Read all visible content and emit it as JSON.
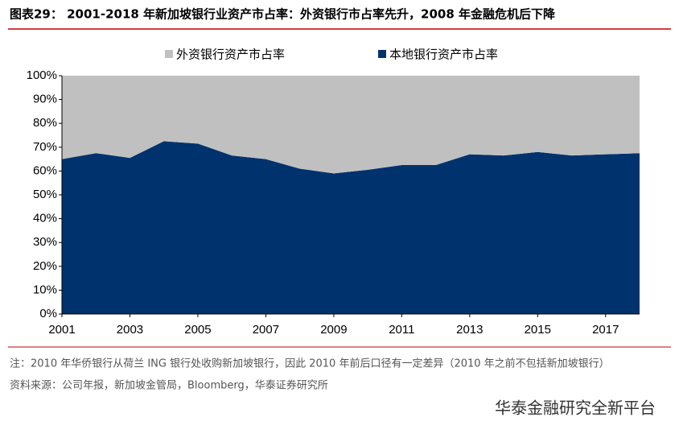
{
  "chart_data": {
    "type": "stacked-area",
    "title": "图表29： 2001-2018 年新加坡银行业资产市占率：外资银行市占率先升，2008 年金融危机后下降",
    "x": [
      2001,
      2002,
      2003,
      2004,
      2005,
      2006,
      2007,
      2008,
      2009,
      2010,
      2011,
      2012,
      2013,
      2014,
      2015,
      2016,
      2017,
      2018
    ],
    "series": [
      {
        "name": "外资银行资产市占率",
        "color": "#c0c0c0",
        "values": [
          35,
          32.5,
          34.5,
          27.5,
          28.5,
          33.5,
          35,
          39,
          41,
          39.5,
          37.5,
          37.5,
          33,
          33.5,
          32,
          33.5,
          33,
          32.5
        ]
      },
      {
        "name": "本地银行资产市占率",
        "color": "#00336e",
        "values": [
          65,
          67.5,
          65.5,
          72.5,
          71.5,
          66.5,
          65,
          61,
          59,
          60.5,
          62.5,
          62.5,
          67,
          66.5,
          68,
          66.5,
          67,
          67.5
        ]
      }
    ],
    "xlim": [
      2001,
      2018
    ],
    "xticks": [
      2001,
      2003,
      2005,
      2007,
      2009,
      2011,
      2013,
      2015,
      2017
    ],
    "ylim": [
      0,
      100
    ],
    "yticks": [
      {
        "value": 0,
        "label": "0%"
      },
      {
        "value": 10,
        "label": "10%"
      },
      {
        "value": 20,
        "label": "20%"
      },
      {
        "value": 30,
        "label": "30%"
      },
      {
        "value": 40,
        "label": "40%"
      },
      {
        "value": 50,
        "label": "50%"
      },
      {
        "value": 60,
        "label": "60%"
      },
      {
        "value": 70,
        "label": "70%"
      },
      {
        "value": 80,
        "label": "80%"
      },
      {
        "value": 90,
        "label": "90%"
      },
      {
        "value": 100,
        "label": "100%"
      }
    ],
    "note": "注：2010 年华侨银行从荷兰 ING 银行处收购新加坡银行，因此 2010 年前后口径有一定差异（2010 年之前不包括新加坡银行）",
    "source": "资料来源：公司年报，新加坡金管局，Bloomberg，华泰证券研究所",
    "watermark": "华泰金融研究全新平台"
  }
}
